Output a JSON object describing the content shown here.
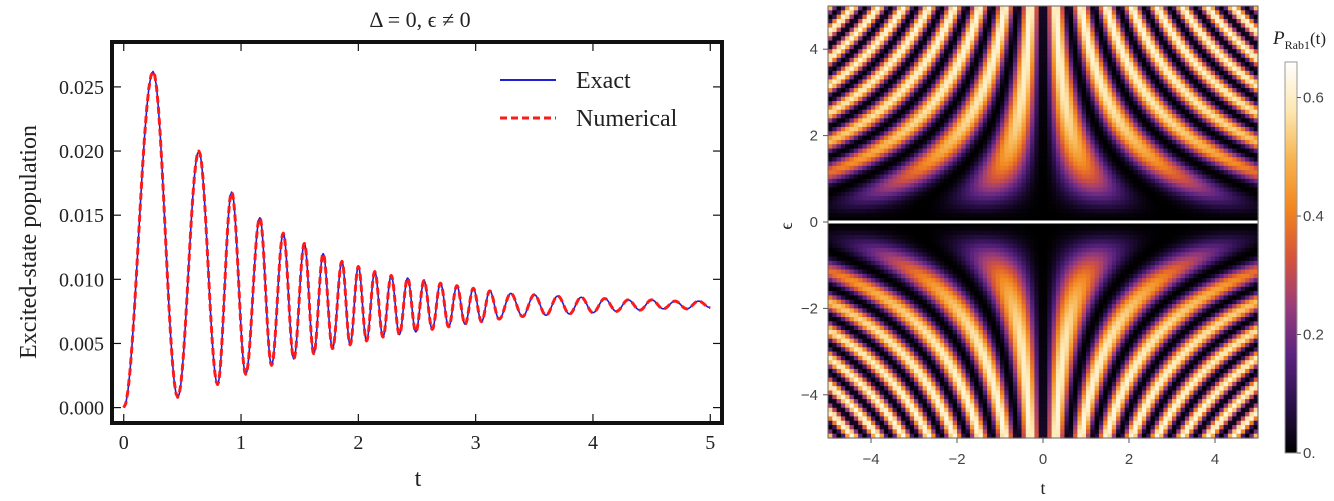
{
  "chart_data": [
    {
      "type": "line",
      "title": "Δ = 0, ϵ ≠ 0",
      "xlabel": "t",
      "ylabel": "Excited-state population",
      "xlim": [
        -0.1,
        5.1
      ],
      "ylim": [
        -0.0012,
        0.0285
      ],
      "xticks": [
        0,
        1,
        2,
        3,
        4,
        5
      ],
      "xtick_labels": [
        "0",
        "1",
        "2",
        "3",
        "4",
        "5"
      ],
      "yticks": [
        0.0,
        0.005,
        0.01,
        0.015,
        0.02,
        0.025
      ],
      "ytick_labels": [
        "0.000",
        "0.005",
        "0.010",
        "0.015",
        "0.020",
        "0.025"
      ],
      "legend_position": "top-right",
      "series": [
        {
          "name": "Exact",
          "color": "#1f1fd6",
          "style": "solid",
          "t": [
            0.0,
            0.25,
            0.46,
            0.64,
            0.8,
            0.92,
            1.04,
            1.16,
            1.26,
            1.36,
            1.45,
            1.54,
            1.62,
            1.7,
            1.78,
            1.86,
            1.93,
            2.0,
            2.07,
            2.14,
            2.21,
            2.28,
            2.35,
            2.42,
            2.49,
            2.56,
            2.63,
            2.7,
            2.77,
            2.84,
            2.91,
            2.98,
            3.05,
            3.12,
            3.2,
            3.3,
            3.4,
            3.5,
            3.6,
            3.7,
            3.8,
            3.9,
            4.0,
            4.1,
            4.2,
            4.3,
            4.4,
            4.5,
            4.6,
            4.7,
            4.8,
            4.9,
            5.0
          ],
          "values": [
            0.0,
            0.0262,
            0.0008,
            0.02,
            0.0018,
            0.0168,
            0.0026,
            0.0148,
            0.0033,
            0.0136,
            0.0038,
            0.0128,
            0.0042,
            0.012,
            0.0046,
            0.0114,
            0.0049,
            0.011,
            0.0052,
            0.0106,
            0.0055,
            0.0103,
            0.0057,
            0.0101,
            0.0059,
            0.0099,
            0.0061,
            0.0097,
            0.0063,
            0.0095,
            0.0065,
            0.0093,
            0.0067,
            0.0091,
            0.0069,
            0.0089,
            0.0071,
            0.0088,
            0.0072,
            0.0087,
            0.0073,
            0.0086,
            0.0074,
            0.0085,
            0.0075,
            0.0084,
            0.0076,
            0.0084,
            0.0077,
            0.0083,
            0.0077,
            0.0083,
            0.0078
          ]
        },
        {
          "name": "Numerical",
          "color": "#ff1a1a",
          "style": "dashed",
          "t": [
            0.0,
            0.25,
            0.46,
            0.64,
            0.8,
            0.92,
            1.04,
            1.16,
            1.26,
            1.36,
            1.45,
            1.54,
            1.62,
            1.7,
            1.78,
            1.86,
            1.93,
            2.0,
            2.07,
            2.14,
            2.21,
            2.28,
            2.35,
            2.42,
            2.49,
            2.56,
            2.63,
            2.7,
            2.77,
            2.84,
            2.91,
            2.98,
            3.05,
            3.12,
            3.2,
            3.3,
            3.4,
            3.5,
            3.6,
            3.7,
            3.8,
            3.9,
            4.0,
            4.1,
            4.2,
            4.3,
            4.4,
            4.5,
            4.6,
            4.7,
            4.8,
            4.9,
            5.0
          ],
          "values": [
            0.0,
            0.0262,
            0.0008,
            0.02,
            0.0018,
            0.0168,
            0.0026,
            0.0148,
            0.0033,
            0.0136,
            0.0038,
            0.0128,
            0.0042,
            0.012,
            0.0046,
            0.0114,
            0.0049,
            0.011,
            0.0052,
            0.0106,
            0.0055,
            0.0103,
            0.0057,
            0.0101,
            0.0059,
            0.0099,
            0.0061,
            0.0097,
            0.0063,
            0.0095,
            0.0065,
            0.0093,
            0.0067,
            0.0091,
            0.0069,
            0.0089,
            0.0071,
            0.0088,
            0.0072,
            0.0087,
            0.0073,
            0.0086,
            0.0074,
            0.0085,
            0.0075,
            0.0084,
            0.0076,
            0.0084,
            0.0077,
            0.0083,
            0.0077,
            0.0083,
            0.0078
          ]
        }
      ]
    },
    {
      "type": "heatmap",
      "xlabel": "t",
      "ylabel": "ϵ",
      "xlim": [
        -5,
        5
      ],
      "ylim": [
        -5,
        5
      ],
      "xticks": [
        -4,
        -2,
        0,
        2,
        4
      ],
      "xtick_labels": [
        "−4",
        "−2",
        "0",
        "2",
        "4"
      ],
      "yticks": [
        -4,
        -2,
        0,
        2,
        4
      ],
      "ytick_labels": [
        "−4",
        "−2",
        "0",
        "2",
        "4"
      ],
      "colorbar": {
        "label_main": "P",
        "label_sub": "Rab1",
        "label_suffix": "(t)",
        "range": [
          0,
          0.66
        ],
        "ticks": [
          0,
          0.2,
          0.4,
          0.6
        ],
        "tick_labels": [
          "0.",
          "0.2",
          "0.4",
          "0.6"
        ],
        "colormap": [
          "#000000",
          "#2a0f4a",
          "#5a2380",
          "#9a3b7a",
          "#d6543a",
          "#f2861f",
          "#f7b350",
          "#fde7b0",
          "#ffffff"
        ]
      },
      "function": "P = 0.66 * e^2/(1+e^2) * sin^2(2.1*sqrt(1+e^2)*t/2)",
      "grid_resolution": [
        100,
        100
      ]
    }
  ]
}
